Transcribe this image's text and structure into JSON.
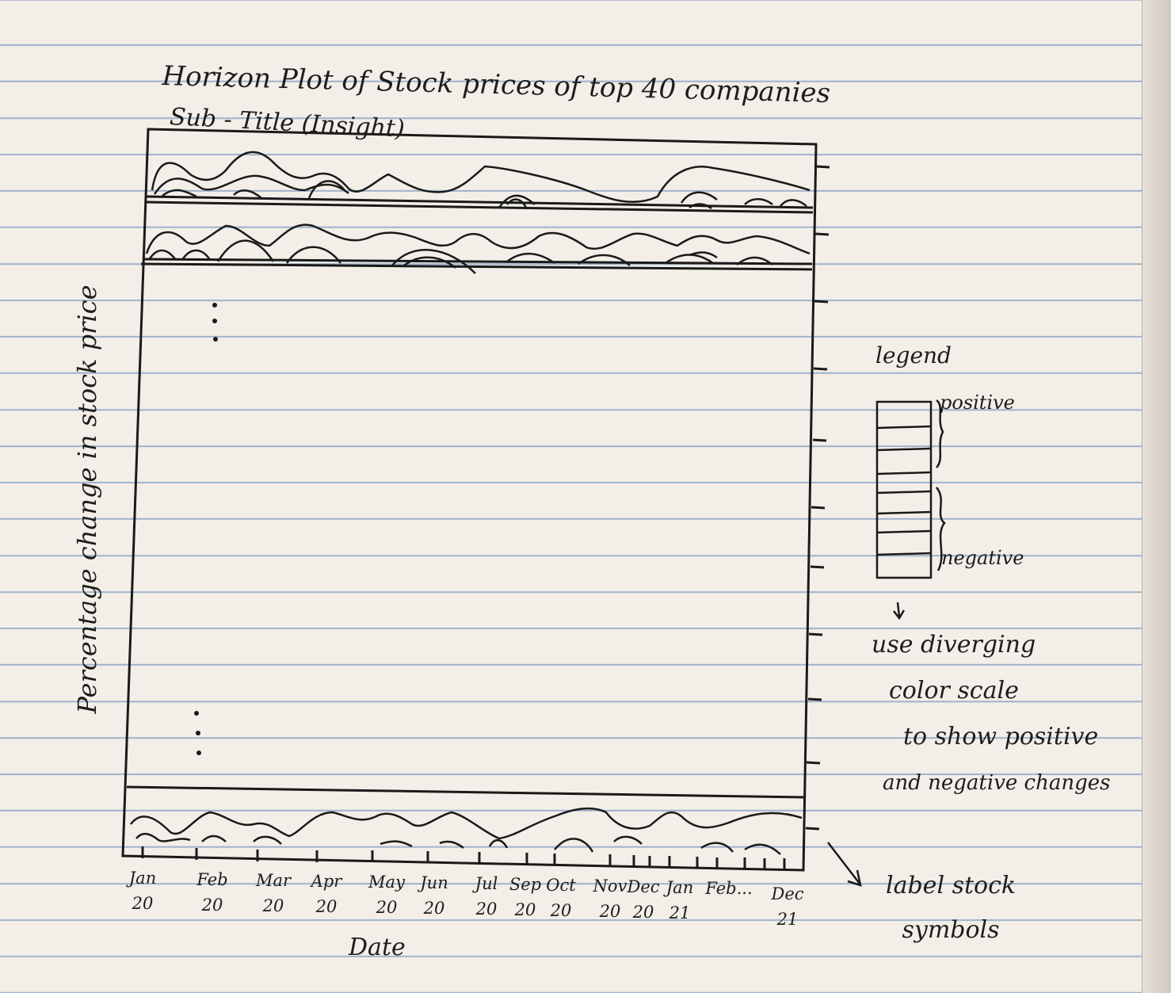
{
  "title": "Horizon Plot of Stock prices of top 40 companies",
  "subtitle": "Sub - Title (Insight)",
  "chart_data": {
    "type": "area",
    "ylabel": "Percentage change in stock price",
    "xlabel": "Date",
    "x_ticks": [
      {
        "month": "Jan",
        "year": "20"
      },
      {
        "month": "Feb",
        "year": "20"
      },
      {
        "month": "Mar",
        "year": "20"
      },
      {
        "month": "Apr",
        "year": "20"
      },
      {
        "month": "May",
        "year": "20"
      },
      {
        "month": "Jun",
        "year": "20"
      },
      {
        "month": "Jul",
        "year": "20"
      },
      {
        "month": "Sep",
        "year": "20"
      },
      {
        "month": "Oct",
        "year": "20"
      },
      {
        "month": "Nov",
        "year": "20"
      },
      {
        "month": "Dec",
        "year": "20"
      },
      {
        "month": "Jan",
        "year": "21"
      },
      {
        "month": "Feb...",
        "year": ""
      },
      {
        "month": "Dec",
        "year": "21"
      }
    ],
    "ellipsis": "⋮"
  },
  "legend": {
    "title": "legend",
    "positive": "positive",
    "negative": "negative",
    "note": [
      "use diverging",
      "color scale",
      "to show positive",
      "and negative changes"
    ]
  },
  "annotation": {
    "label_note": [
      "label stock",
      "symbols"
    ]
  }
}
